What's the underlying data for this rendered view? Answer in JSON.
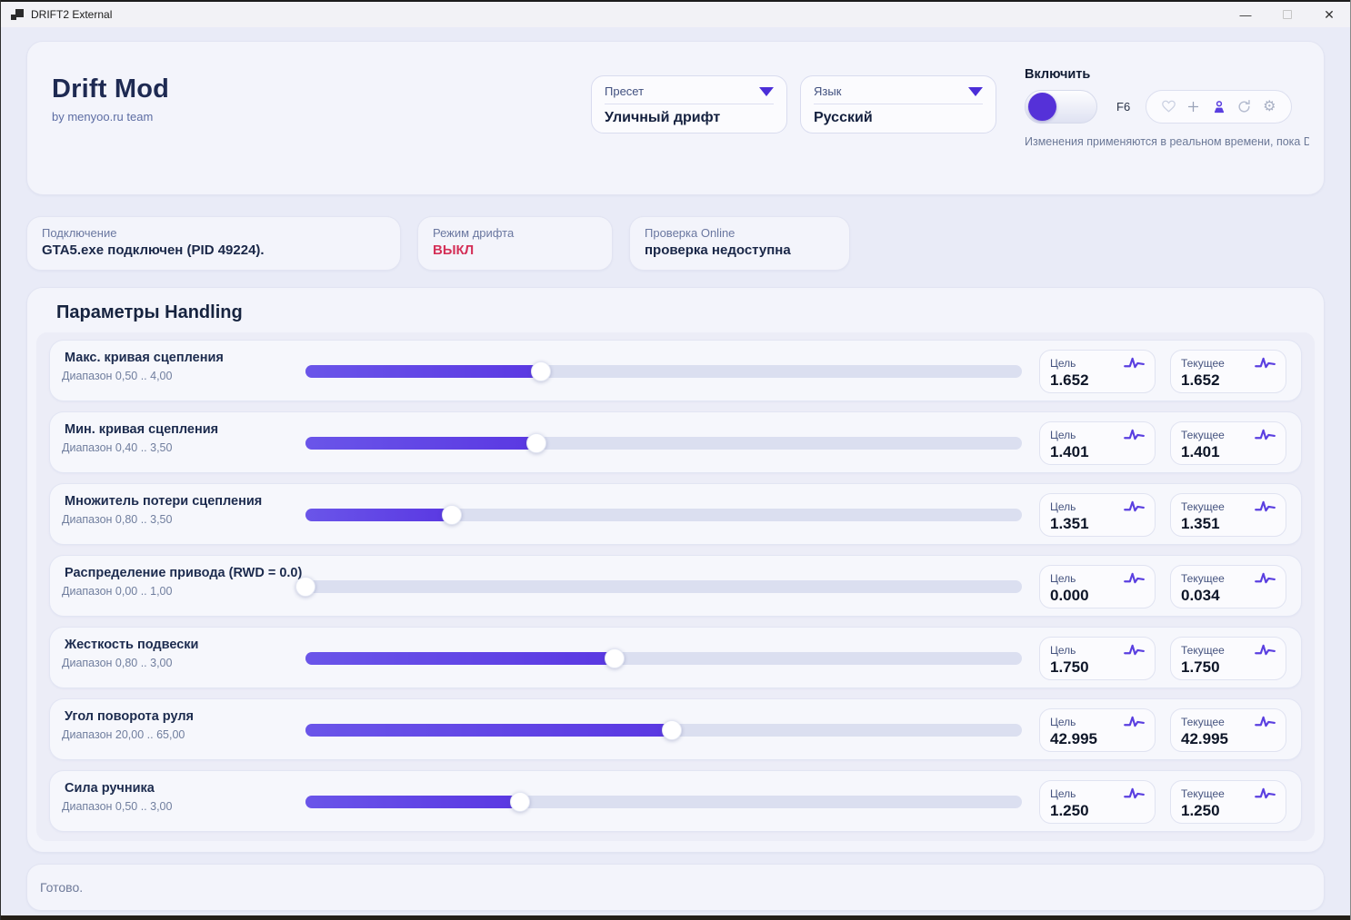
{
  "window": {
    "title": "DRIFT2 External"
  },
  "header": {
    "app_title": "Drift Mod",
    "app_subtitle": "by menyoo.ru team",
    "preset": {
      "label": "Пресет",
      "value": "Уличный дрифт"
    },
    "language": {
      "label": "Язык",
      "value": "Русский"
    },
    "enable_label": "Включить",
    "hotkey": "F6",
    "toolbar_icons": [
      "heart",
      "plus",
      "user",
      "refresh",
      "gear"
    ],
    "caption": "Изменения применяются в реальном времени, пока Drift"
  },
  "status_cards": [
    {
      "label": "Подключение",
      "value": "GTA5.exe подключен (PID 49224).",
      "value_color": "#1a2748"
    },
    {
      "label": "Режим дрифта",
      "value": "ВЫКЛ",
      "value_color": "#d43058"
    },
    {
      "label": "Проверка Online",
      "value": "проверка недоступна",
      "value_color": "#1a2748"
    }
  ],
  "handling": {
    "title": "Параметры Handling",
    "target_label": "Цель",
    "current_label": "Текущее",
    "rows": [
      {
        "name": "Макс. кривая сцепления",
        "range": "Диапазон 0,50 .. 4,00",
        "min": 0.5,
        "max": 4.0,
        "value": 1.652,
        "target": "1.652",
        "current": "1.652"
      },
      {
        "name": "Мин. кривая сцепления",
        "range": "Диапазон 0,40 .. 3,50",
        "min": 0.4,
        "max": 3.5,
        "value": 1.401,
        "target": "1.401",
        "current": "1.401"
      },
      {
        "name": "Множитель потери сцепления",
        "range": "Диапазон 0,80 .. 3,50",
        "min": 0.8,
        "max": 3.5,
        "value": 1.351,
        "target": "1.351",
        "current": "1.351"
      },
      {
        "name": "Распределение привода (RWD = 0.0)",
        "range": "Диапазон 0,00 .. 1,00",
        "min": 0.0,
        "max": 1.0,
        "value": 0.0,
        "target": "0.000",
        "current": "0.034"
      },
      {
        "name": "Жесткость подвески",
        "range": "Диапазон 0,80 .. 3,00",
        "min": 0.8,
        "max": 3.0,
        "value": 1.75,
        "target": "1.750",
        "current": "1.750"
      },
      {
        "name": "Угол поворота руля",
        "range": "Диапазон 20,00 .. 65,00",
        "min": 20.0,
        "max": 65.0,
        "value": 42.995,
        "target": "42.995",
        "current": "42.995"
      },
      {
        "name": "Сила ручника",
        "range": "Диапазон 0,50 .. 3,00",
        "min": 0.5,
        "max": 3.0,
        "value": 1.25,
        "target": "1.250",
        "current": "1.250"
      }
    ]
  },
  "footer": {
    "status": "Готово."
  },
  "colors": {
    "accent": "#5a3fe0",
    "danger": "#d43058",
    "track": "#dbdff0"
  }
}
